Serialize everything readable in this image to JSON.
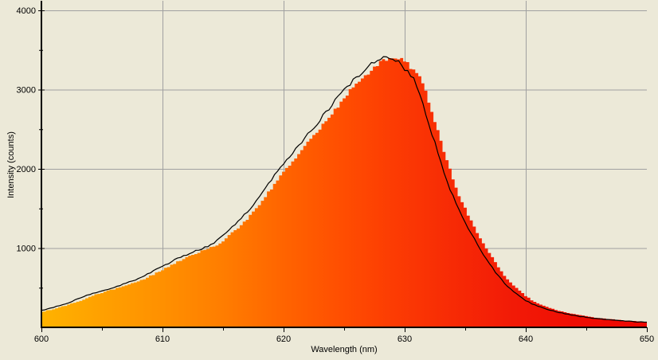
{
  "window": {
    "background_color": "#ece9d8"
  },
  "chart_data": {
    "type": "area",
    "title": "",
    "xlabel": "Wavelength (nm)",
    "ylabel": "Intensity (counts)",
    "xlim": [
      600,
      650
    ],
    "ylim": [
      0,
      4000
    ],
    "grid": true,
    "legend": "none",
    "x_major_ticks": [
      600,
      610,
      620,
      630,
      640,
      650
    ],
    "x_tick_labels": [
      "600",
      "610",
      "620",
      "630",
      "640",
      "650"
    ],
    "x_minor_ticks": [
      605,
      615,
      625,
      635,
      645
    ],
    "y_major_ticks": [
      1000,
      2000,
      3000,
      4000
    ],
    "y_tick_labels": [
      "1000",
      "2000",
      "3000",
      "4000"
    ],
    "y_minor_ticks": [
      500,
      1500,
      2500,
      3500
    ],
    "x": [
      600,
      601,
      602,
      603,
      604,
      605,
      606,
      607,
      608,
      609,
      610,
      611,
      612,
      613,
      614,
      615,
      616,
      617,
      618,
      619,
      620,
      621,
      622,
      623,
      624,
      625,
      626,
      627,
      628,
      629,
      630,
      631,
      632,
      633,
      634,
      635,
      636,
      637,
      638,
      639,
      640,
      641,
      642,
      643,
      644,
      645,
      646,
      647,
      648,
      649,
      650
    ],
    "values": [
      215,
      255,
      300,
      355,
      415,
      465,
      505,
      555,
      615,
      690,
      770,
      850,
      920,
      980,
      1045,
      1165,
      1300,
      1460,
      1660,
      1870,
      2060,
      2245,
      2430,
      2620,
      2805,
      2990,
      3150,
      3290,
      3380,
      3400,
      3270,
      3060,
      2570,
      2080,
      1650,
      1330,
      1050,
      810,
      600,
      455,
      340,
      268,
      218,
      180,
      150,
      128,
      108,
      94,
      82,
      72,
      64
    ],
    "series": [
      {
        "name": "spectrum-filled-steps",
        "type": "stepped-area",
        "x_offset_nm": 0.55,
        "bin_nm": 0.25,
        "fill": "wavelength-gradient"
      },
      {
        "name": "spectrum-outline",
        "type": "line",
        "color": "#000000"
      }
    ],
    "peak": {
      "wavelength_nm": 628.5,
      "intensity_counts": 3400
    },
    "colors": {
      "background": "#ece9d8",
      "grid": "#a0a0a0",
      "axis": "#000000",
      "line": "#000000",
      "gradient": [
        [
          0.0,
          "#ffb300"
        ],
        [
          0.1,
          "#ffa000"
        ],
        [
          0.2,
          "#ff9000"
        ],
        [
          0.3,
          "#ff7d00"
        ],
        [
          0.4,
          "#ff6400"
        ],
        [
          0.5,
          "#ff4d01"
        ],
        [
          0.58,
          "#fc3c03"
        ],
        [
          0.68,
          "#f72a05"
        ],
        [
          0.78,
          "#f21a06"
        ],
        [
          0.88,
          "#ef0e04"
        ],
        [
          1.0,
          "#ee0701"
        ]
      ]
    }
  }
}
